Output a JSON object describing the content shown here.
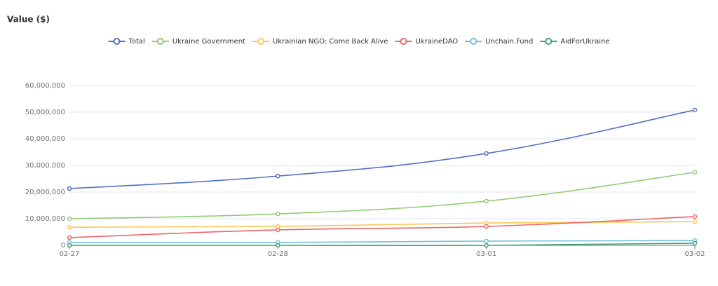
{
  "chart_data": {
    "type": "line",
    "title": "Value ($)",
    "categories": [
      "02-27",
      "02-28",
      "03-01",
      "03-02"
    ],
    "series": [
      {
        "name": "Total",
        "color": "#5470c6",
        "values": [
          21300000,
          26000000,
          34500000,
          50800000
        ]
      },
      {
        "name": "Ukraine Government",
        "color": "#91cc75",
        "values": [
          10000000,
          11800000,
          16600000,
          27400000
        ]
      },
      {
        "name": "Ukrainian NGO: Come Back Alive",
        "color": "#fac858",
        "values": [
          6800000,
          7100000,
          8400000,
          8900000
        ]
      },
      {
        "name": "UkraineDAO",
        "color": "#ee6666",
        "values": [
          2900000,
          5800000,
          7100000,
          10800000
        ]
      },
      {
        "name": "Unchain.Fund",
        "color": "#73c0de",
        "values": [
          1100000,
          1100000,
          1600000,
          1800000
        ]
      },
      {
        "name": "AidForUkraine",
        "color": "#3ba272",
        "values": [
          0,
          0,
          0,
          800000
        ]
      }
    ],
    "ylim": [
      0,
      60000000
    ],
    "yticks": [
      0,
      {
        "value": 10000000,
        "label": "10,000,000"
      },
      {
        "value": 20000000,
        "label": "20,000,000"
      },
      {
        "value": 30000000,
        "label": "30,000,000"
      },
      {
        "value": 40000000,
        "label": "40,000,000"
      },
      {
        "value": 50000000,
        "label": "50,000,000"
      },
      {
        "value": 60000000,
        "label": "60,000,000"
      }
    ],
    "grid": true,
    "legend": "top"
  }
}
